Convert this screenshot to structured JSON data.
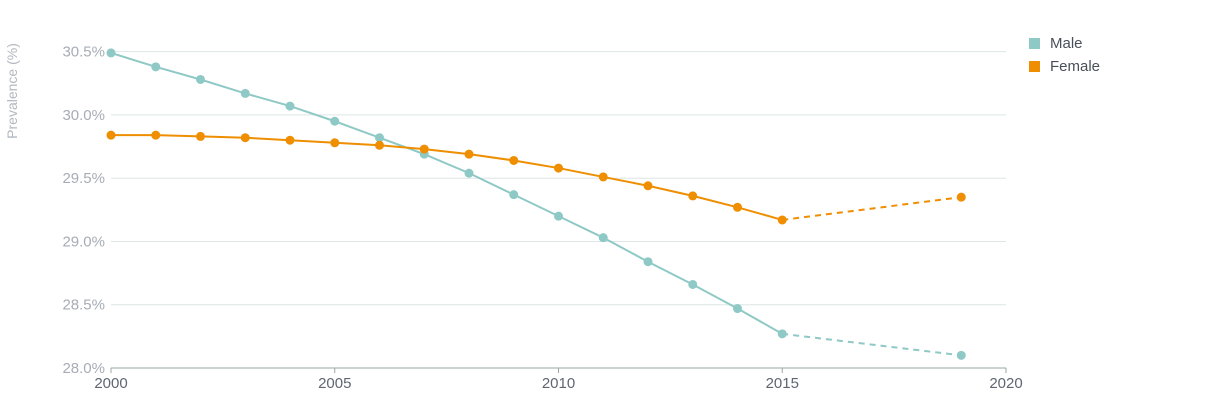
{
  "chart_data": {
    "type": "line",
    "title": "",
    "xlabel": "",
    "ylabel": "Prevalence (%)",
    "xlim": [
      2000,
      2020
    ],
    "ylim": [
      28.0,
      30.6
    ],
    "x_ticks": [
      2000,
      2005,
      2010,
      2015,
      2020
    ],
    "y_ticks": [
      28.0,
      28.5,
      29.0,
      29.5,
      30.0,
      30.5
    ],
    "y_tick_labels": [
      "28.0%",
      "28.5%",
      "29.0%",
      "29.5%",
      "30.0%",
      "30.5%"
    ],
    "grid": "horizontal",
    "legend_position": "top-right",
    "series": [
      {
        "name": "Male",
        "color": "#8ec9c6",
        "x": [
          2000,
          2001,
          2002,
          2003,
          2004,
          2005,
          2006,
          2007,
          2008,
          2009,
          2010,
          2011,
          2012,
          2013,
          2014,
          2015,
          2019
        ],
        "values": [
          30.49,
          30.38,
          30.28,
          30.17,
          30.07,
          29.95,
          29.82,
          29.69,
          29.54,
          29.37,
          29.2,
          29.03,
          28.84,
          28.66,
          28.47,
          28.27,
          28.1
        ],
        "projected_from": 2015
      },
      {
        "name": "Female",
        "color": "#ee8e00",
        "x": [
          2000,
          2001,
          2002,
          2003,
          2004,
          2005,
          2006,
          2007,
          2008,
          2009,
          2010,
          2011,
          2012,
          2013,
          2014,
          2015,
          2019
        ],
        "values": [
          29.84,
          29.84,
          29.83,
          29.82,
          29.8,
          29.78,
          29.76,
          29.73,
          29.69,
          29.64,
          29.58,
          29.51,
          29.44,
          29.36,
          29.27,
          29.17,
          29.35
        ],
        "projected_from": 2015
      }
    ]
  },
  "legend": {
    "items": [
      {
        "label": "Male",
        "color": "#8ec9c6"
      },
      {
        "label": "Female",
        "color": "#ee8e00"
      }
    ]
  }
}
